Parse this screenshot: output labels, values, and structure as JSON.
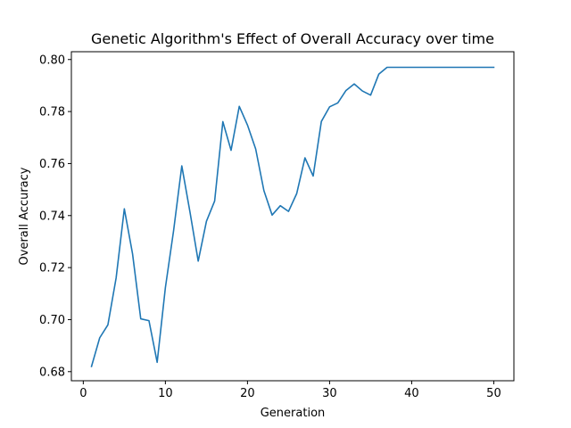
{
  "chart_data": {
    "type": "line",
    "title": "Genetic Algorithm's Effect of Overall Accuracy over time",
    "xlabel": "Generation",
    "ylabel": "Overall Accuracy",
    "xlim": [
      -1.45,
      52.45
    ],
    "ylim": [
      0.6765,
      0.803
    ],
    "xticks": [
      0,
      10,
      20,
      30,
      40,
      50
    ],
    "xtick_labels": [
      "0",
      "10",
      "20",
      "30",
      "40",
      "50"
    ],
    "yticks": [
      0.68,
      0.7,
      0.72,
      0.74,
      0.76,
      0.78,
      0.8
    ],
    "ytick_labels": [
      "0.68",
      "0.70",
      "0.72",
      "0.74",
      "0.76",
      "0.78",
      "0.80"
    ],
    "grid": false,
    "series": [
      {
        "color": "#1f77b4",
        "x": [
          1,
          2,
          3,
          4,
          5,
          6,
          7,
          8,
          9,
          10,
          11,
          12,
          13,
          14,
          15,
          16,
          17,
          18,
          19,
          20,
          21,
          22,
          23,
          24,
          25,
          26,
          27,
          28,
          29,
          30,
          31,
          32,
          33,
          34,
          35,
          36,
          37,
          38,
          39,
          40,
          41,
          42,
          43,
          44,
          45,
          46,
          47,
          48,
          49,
          50
        ],
        "y": [
          0.682,
          0.693,
          0.698,
          0.716,
          0.7426,
          0.7253,
          0.7003,
          0.6996,
          0.6836,
          0.7123,
          0.7342,
          0.7591,
          0.7413,
          0.7225,
          0.7378,
          0.7456,
          0.7761,
          0.7651,
          0.782,
          0.7748,
          0.7656,
          0.7496,
          0.7402,
          0.7438,
          0.7416,
          0.7485,
          0.7622,
          0.7552,
          0.7762,
          0.7818,
          0.7833,
          0.7881,
          0.7906,
          0.7879,
          0.7863,
          0.7944,
          0.797,
          0.797,
          0.797,
          0.797,
          0.797,
          0.797,
          0.797,
          0.797,
          0.797,
          0.797,
          0.797,
          0.797,
          0.797,
          0.797
        ]
      }
    ]
  }
}
